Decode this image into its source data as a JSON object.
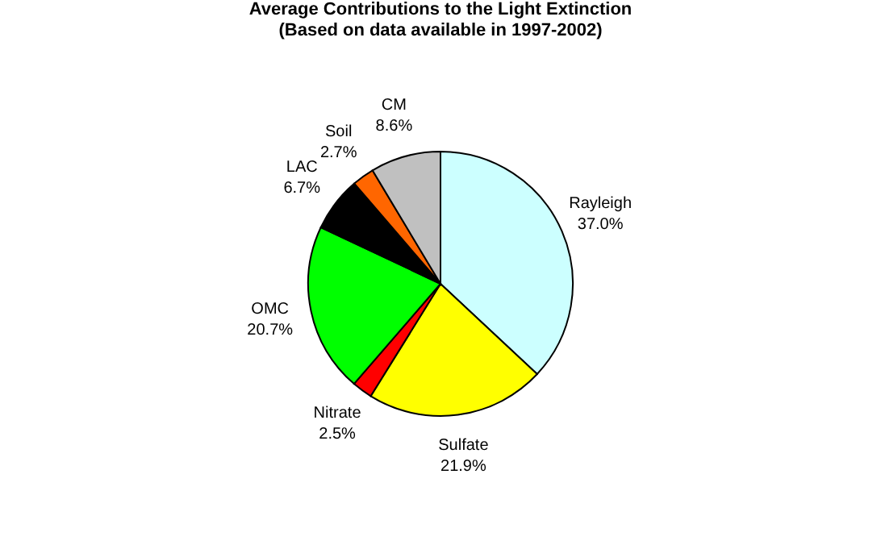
{
  "chart_data": {
    "type": "pie",
    "title": "Average Contributions to the Light Extinction\n(Based on data available in 1997-2002)",
    "categories": [
      "Rayleigh",
      "Sulfate",
      "Nitrate",
      "OMC",
      "LAC",
      "Soil",
      "CM"
    ],
    "values": [
      37.0,
      21.9,
      2.5,
      20.7,
      6.7,
      2.7,
      8.6
    ],
    "value_labels": [
      "37.0%",
      "21.9%",
      "2.5%",
      "20.7%",
      "6.7%",
      "2.7%",
      "8.6%"
    ],
    "colors": [
      "#ccffff",
      "#ffff00",
      "#ff0000",
      "#00ff00",
      "#000000",
      "#ff6600",
      "#c0c0c0"
    ],
    "legend": false
  }
}
